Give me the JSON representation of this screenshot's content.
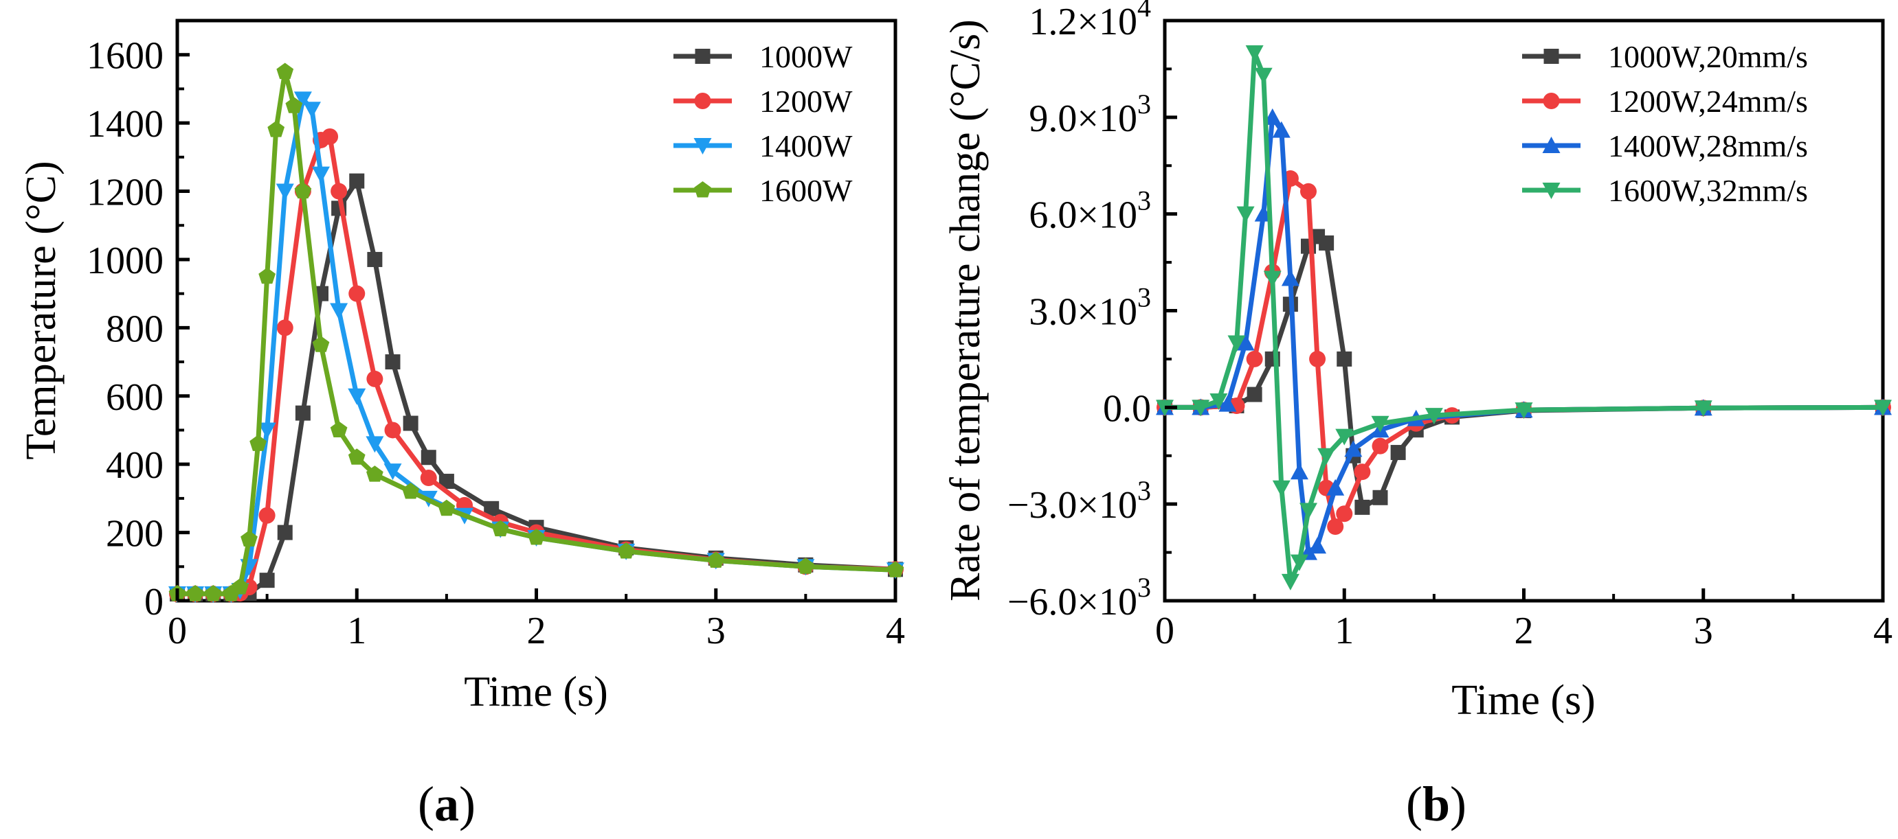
{
  "chart_data": [
    {
      "type": "line",
      "panel": "(a)",
      "panel_paren_open": "(",
      "panel_letter": "a",
      "panel_paren_close": ")",
      "xlabel": "Time (s)",
      "ylabel": "Temperature (°C)",
      "xlim": [
        0,
        4
      ],
      "ylim": [
        0,
        1700
      ],
      "xticks": [
        0,
        1,
        2,
        3,
        4
      ],
      "yticks": [
        0,
        200,
        400,
        600,
        800,
        1000,
        1200,
        1400,
        1600
      ],
      "legend_position": "top-right",
      "series": [
        {
          "name": "1000W",
          "color": "#404040",
          "marker": "square",
          "x": [
            0,
            0.1,
            0.2,
            0.3,
            0.4,
            0.5,
            0.6,
            0.7,
            0.8,
            0.9,
            1.0,
            1.1,
            1.2,
            1.3,
            1.4,
            1.5,
            1.75,
            2.0,
            2.5,
            3.0,
            3.5,
            4.0
          ],
          "y": [
            20,
            20,
            20,
            20,
            22,
            60,
            200,
            550,
            900,
            1150,
            1230,
            1000,
            700,
            520,
            420,
            350,
            270,
            215,
            155,
            125,
            105,
            92
          ]
        },
        {
          "name": "1200W",
          "color": "#ee3e3e",
          "marker": "circle",
          "x": [
            0,
            0.1,
            0.2,
            0.3,
            0.35,
            0.4,
            0.5,
            0.6,
            0.7,
            0.8,
            0.85,
            0.9,
            1.0,
            1.1,
            1.2,
            1.4,
            1.6,
            1.8,
            2.0,
            2.5,
            3.0,
            3.5,
            4.0
          ],
          "y": [
            20,
            20,
            20,
            20,
            22,
            40,
            250,
            800,
            1200,
            1350,
            1360,
            1200,
            900,
            650,
            500,
            360,
            280,
            230,
            200,
            150,
            120,
            100,
            92
          ]
        },
        {
          "name": "1400W",
          "color": "#1e9bf0",
          "marker": "triangle-down",
          "x": [
            0,
            0.1,
            0.2,
            0.3,
            0.35,
            0.4,
            0.5,
            0.6,
            0.7,
            0.75,
            0.8,
            0.9,
            1.0,
            1.1,
            1.2,
            1.4,
            1.6,
            1.8,
            2.0,
            2.5,
            3.0,
            3.5,
            4.0
          ],
          "y": [
            20,
            20,
            20,
            20,
            30,
            100,
            500,
            1200,
            1470,
            1440,
            1250,
            850,
            600,
            460,
            380,
            300,
            250,
            210,
            185,
            145,
            118,
            100,
            90
          ]
        },
        {
          "name": "1600W",
          "color": "#6aa820",
          "marker": "pentagon",
          "x": [
            0,
            0.1,
            0.2,
            0.3,
            0.35,
            0.4,
            0.45,
            0.5,
            0.55,
            0.6,
            0.65,
            0.7,
            0.8,
            0.9,
            1.0,
            1.1,
            1.3,
            1.5,
            1.8,
            2.0,
            2.5,
            3.0,
            3.5,
            4.0
          ],
          "y": [
            20,
            20,
            20,
            20,
            40,
            180,
            460,
            950,
            1380,
            1550,
            1450,
            1200,
            750,
            500,
            420,
            370,
            320,
            270,
            210,
            185,
            145,
            118,
            100,
            90
          ]
        }
      ]
    },
    {
      "type": "line",
      "panel": "(b)",
      "panel_paren_open": "(",
      "panel_letter": "b",
      "panel_paren_close": ")",
      "xlabel": "Time (s)",
      "ylabel": "Rate of temperature change (°C/s)",
      "xlim": [
        0,
        4
      ],
      "ylim": [
        -6000,
        12000
      ],
      "xticks": [
        0,
        1,
        2,
        3,
        4
      ],
      "yticks": [
        -6000,
        -3000,
        0,
        3000,
        6000,
        9000,
        12000
      ],
      "ytick_labels": [
        {
          "mantissa": "−6.0×10",
          "exp": "3"
        },
        {
          "mantissa": "−3.0×10",
          "exp": "3"
        },
        {
          "mantissa": "0.0",
          "exp": ""
        },
        {
          "mantissa": "3.0×10",
          "exp": "3"
        },
        {
          "mantissa": "6.0×10",
          "exp": "3"
        },
        {
          "mantissa": "9.0×10",
          "exp": "3"
        },
        {
          "mantissa": "1.2×10",
          "exp": "4"
        }
      ],
      "legend_position": "top-right",
      "series": [
        {
          "name": "1000W,20mm/s",
          "color": "#404040",
          "marker": "square",
          "x": [
            0,
            0.2,
            0.4,
            0.5,
            0.6,
            0.7,
            0.8,
            0.85,
            0.9,
            1.0,
            1.05,
            1.1,
            1.2,
            1.3,
            1.4,
            1.6,
            2.0,
            3.0,
            4.0
          ],
          "y": [
            0,
            0,
            50,
            400,
            1500,
            3200,
            5000,
            5300,
            5100,
            1500,
            -1500,
            -3100,
            -2800,
            -1400,
            -700,
            -300,
            -100,
            -20,
            0
          ]
        },
        {
          "name": "1200W,24mm/s",
          "color": "#ee3e3e",
          "marker": "circle",
          "x": [
            0,
            0.2,
            0.4,
            0.5,
            0.6,
            0.7,
            0.8,
            0.85,
            0.9,
            0.95,
            1.0,
            1.1,
            1.2,
            1.4,
            1.6,
            2.0,
            3.0,
            4.0
          ],
          "y": [
            0,
            0,
            50,
            1500,
            4200,
            7100,
            6700,
            1500,
            -2500,
            -3700,
            -3300,
            -2000,
            -1200,
            -500,
            -250,
            -80,
            -20,
            0
          ]
        },
        {
          "name": "1400W,28mm/s",
          "color": "#1a66d9",
          "marker": "triangle-up",
          "x": [
            0,
            0.2,
            0.35,
            0.45,
            0.55,
            0.6,
            0.65,
            0.7,
            0.75,
            0.8,
            0.85,
            0.95,
            1.05,
            1.2,
            1.4,
            2.0,
            3.0,
            4.0
          ],
          "y": [
            0,
            0,
            100,
            2000,
            6000,
            9000,
            8600,
            4000,
            -2000,
            -4500,
            -4300,
            -2500,
            -1300,
            -700,
            -350,
            -80,
            -20,
            0
          ]
        },
        {
          "name": "1600W,32mm/s",
          "color": "#2fae6a",
          "marker": "triangle-down",
          "x": [
            0,
            0.2,
            0.3,
            0.4,
            0.45,
            0.5,
            0.55,
            0.6,
            0.65,
            0.7,
            0.75,
            0.8,
            0.9,
            1.0,
            1.2,
            1.5,
            2.0,
            3.0,
            4.0
          ],
          "y": [
            0,
            0,
            200,
            2000,
            6000,
            11000,
            10300,
            4000,
            -2500,
            -5400,
            -4800,
            -3200,
            -1500,
            -900,
            -500,
            -250,
            -80,
            -20,
            0
          ]
        }
      ]
    }
  ]
}
